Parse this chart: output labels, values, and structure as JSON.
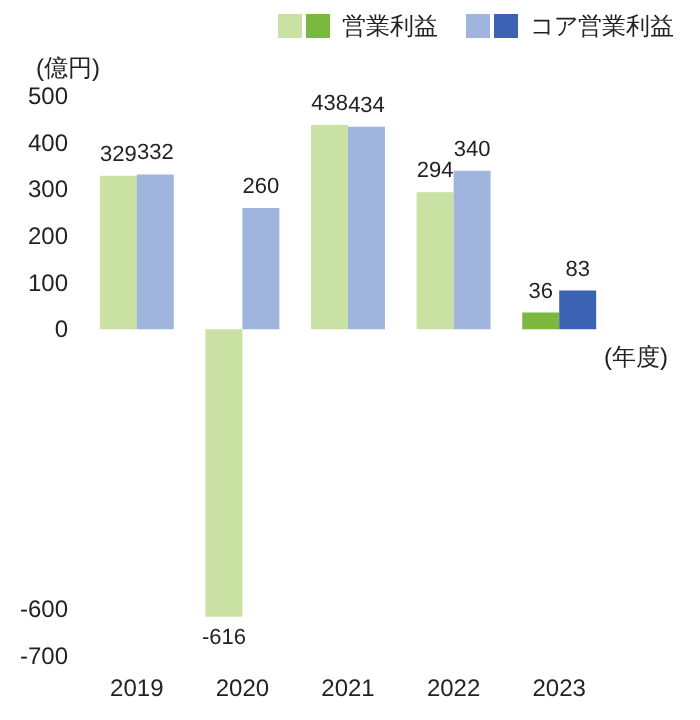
{
  "chart_data": {
    "type": "bar",
    "ylabel": "(億円)",
    "xlabel": "(年度)",
    "categories": [
      "2019",
      "2020",
      "2021",
      "2022",
      "2023"
    ],
    "series": [
      {
        "name": "営業利益",
        "color": "#c9e1a2",
        "colors": [
          "#c9e1a2",
          "#c9e1a2",
          "#c9e1a2",
          "#c9e1a2",
          "#7ab840"
        ],
        "values": [
          329,
          -616,
          438,
          294,
          36
        ]
      },
      {
        "name": "コア営業利益",
        "color": "#9fb5de",
        "colors": [
          "#9fb5de",
          "#9fb5de",
          "#9fb5de",
          "#9fb5de",
          "#3b62b3"
        ],
        "values": [
          332,
          260,
          434,
          340,
          83
        ]
      }
    ],
    "ylim": [
      -700,
      500
    ],
    "yticks": [
      -700,
      -600,
      0,
      100,
      200,
      300,
      400,
      500
    ],
    "data_labels": true,
    "grid": false,
    "legend": "top right"
  }
}
